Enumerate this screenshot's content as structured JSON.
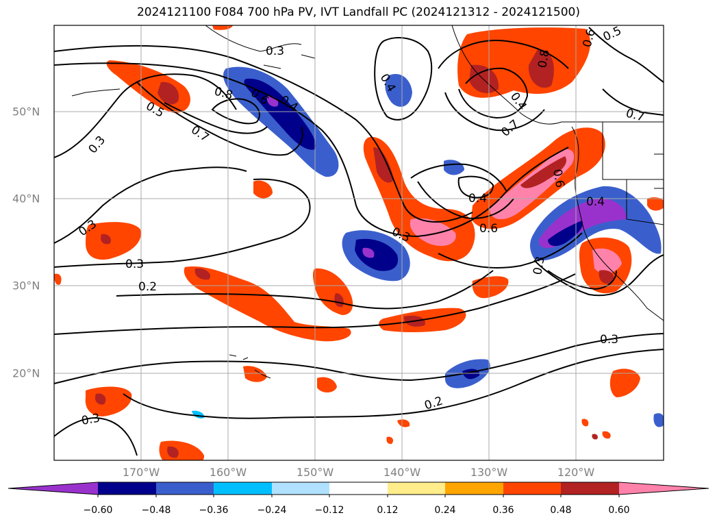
{
  "title": "2024121100 F084 700 hPa PV, IVT Landfall PC (2024121312 - 2024121500)",
  "lon_labels": [
    "170°W",
    "160°W",
    "150°W",
    "140°W",
    "130°W",
    "120°W"
  ],
  "lat_labels": [
    "50°N",
    "40°N",
    "30°N",
    "20°N"
  ],
  "colorbar": {
    "ticks": [
      "−0.60",
      "−0.48",
      "−0.36",
      "−0.24",
      "−0.12",
      "0.12",
      "0.24",
      "0.36",
      "0.48",
      "0.60"
    ],
    "colors": [
      "#9932cc",
      "#00008b",
      "#3a5fcd",
      "#00bfff",
      "#b0e2ff",
      "#ffffff",
      "#ffec8b",
      "#ffa500",
      "#ff4500",
      "#b22222",
      "#ff82ab"
    ]
  },
  "contour_labels": [
    "0.8",
    "0.6",
    "0.4",
    "0.7",
    "0.5",
    "0.3",
    "0.4",
    "0.8",
    "0.6",
    "0.5",
    "0.4",
    "0.3",
    "0.3",
    "0.3",
    "0.2",
    "0.3",
    "0.2",
    "0.3",
    "0.4",
    "0.6",
    "0.3",
    "0.7",
    "0.7",
    "0.6",
    "0.4",
    "0.3"
  ]
}
